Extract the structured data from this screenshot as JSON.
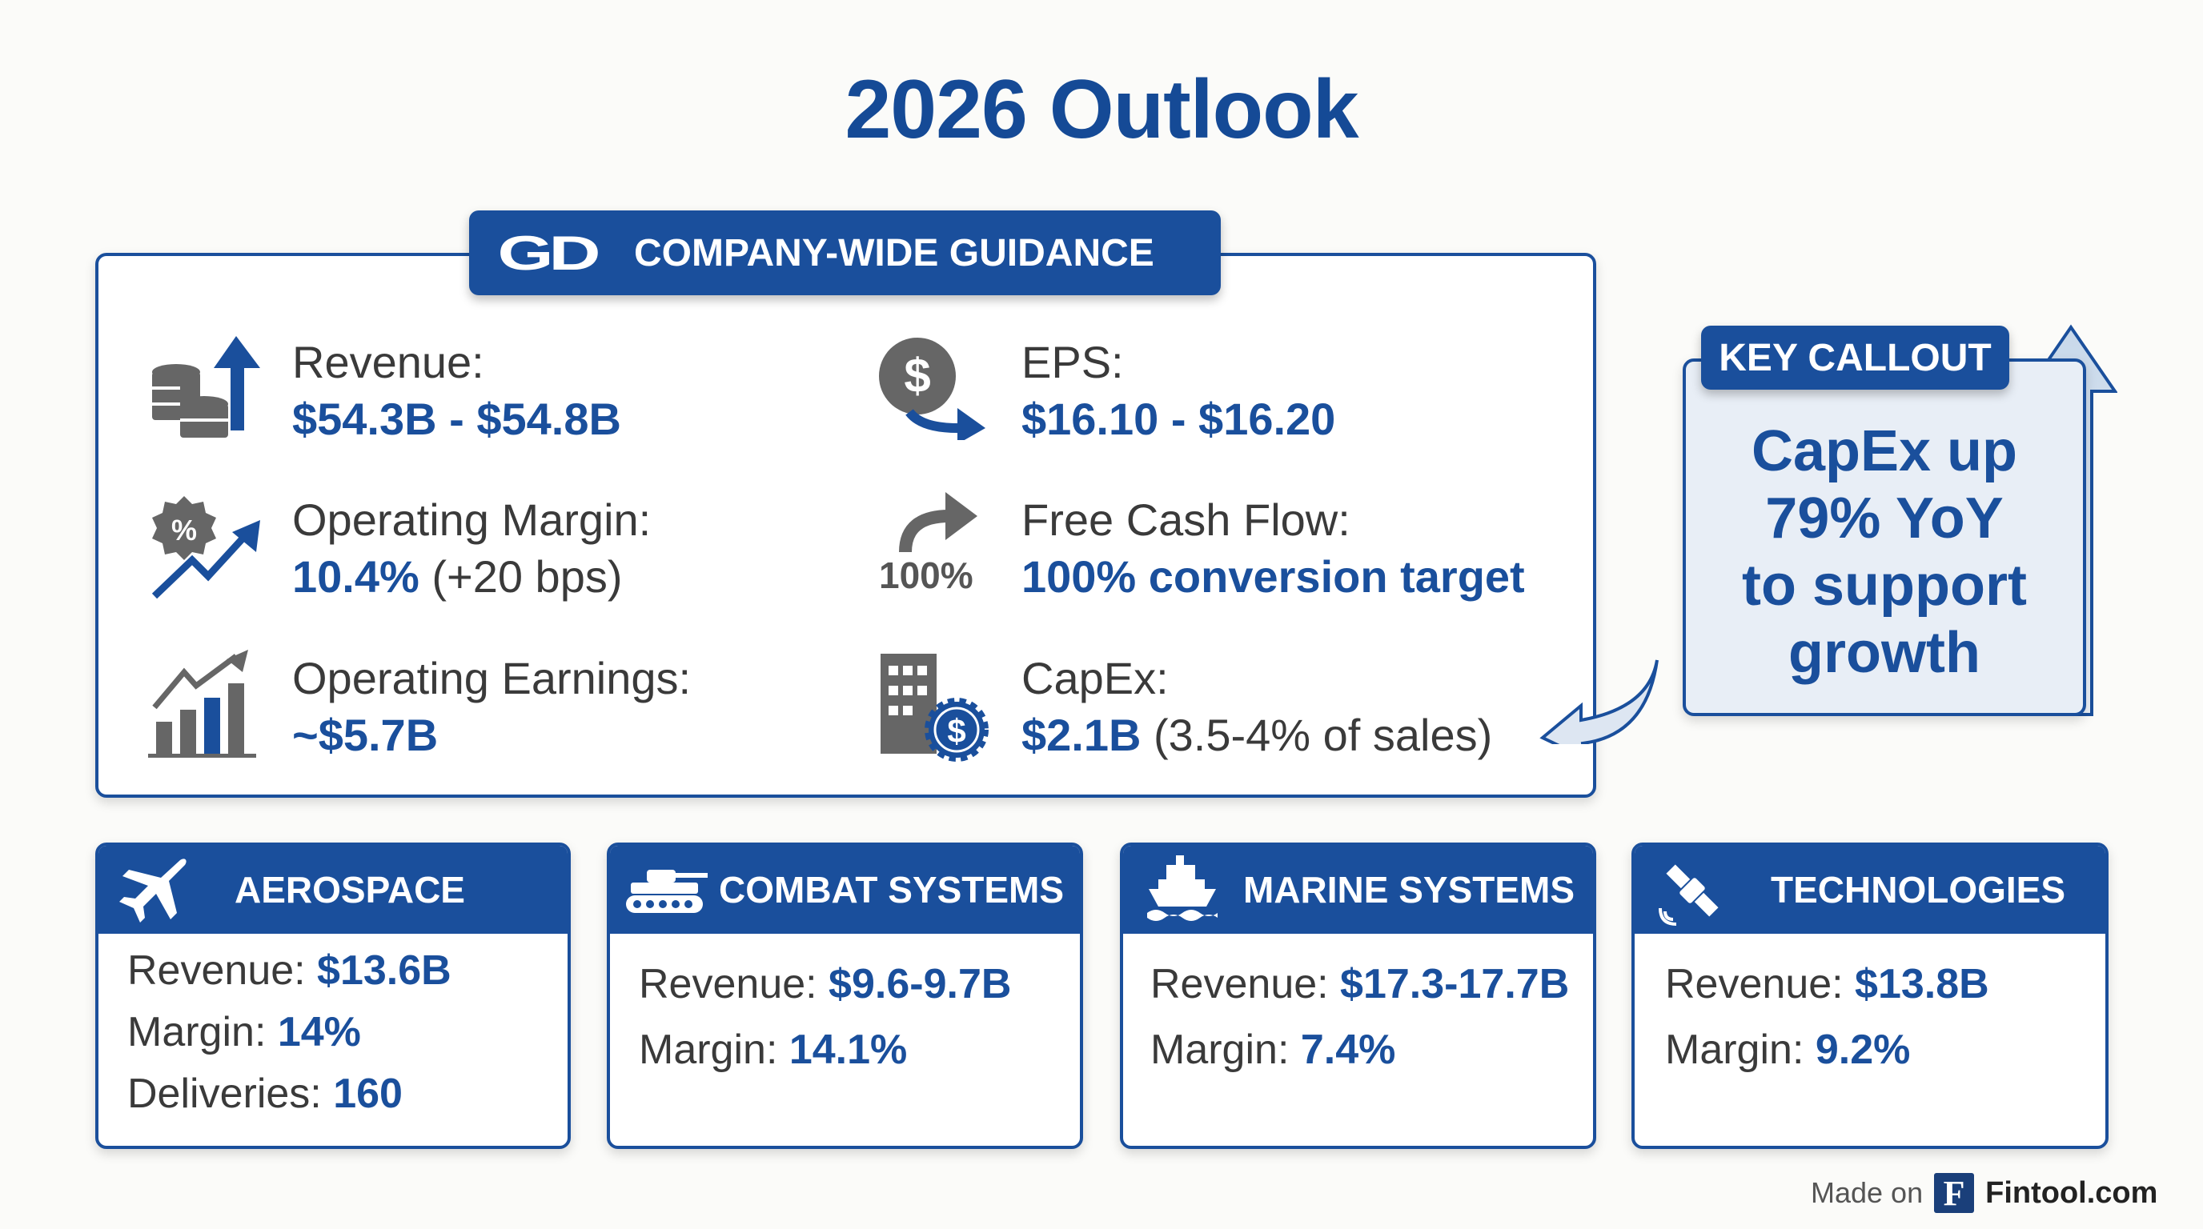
{
  "title": "2026 Outlook",
  "guidance": {
    "logo": "GD",
    "header": "COMPANY-WIDE GUIDANCE",
    "items": [
      {
        "icon": "coins-arrow-up-icon",
        "label": "Revenue:",
        "value": "$54.3B - $54.8B",
        "note": ""
      },
      {
        "icon": "dollar-arrow-icon",
        "label": "EPS:",
        "value": "$16.10 - $16.20",
        "note": ""
      },
      {
        "icon": "percent-badge-trend-icon",
        "label": "Operating Margin:",
        "value": "10.4%",
        "note": " (+20 bps)"
      },
      {
        "icon": "curved-arrow-100-icon",
        "icon_text": "100%",
        "label": "Free Cash Flow:",
        "value": "100% conversion target",
        "note": ""
      },
      {
        "icon": "bar-chart-trend-icon",
        "label": "Operating Earnings:",
        "value": "~$5.7B",
        "note": ""
      },
      {
        "icon": "building-dollar-gear-icon",
        "label": "CapEx:",
        "value": "$2.1B",
        "note": " (3.5-4% of sales)"
      }
    ]
  },
  "callout": {
    "header": "KEY CALLOUT",
    "lines": [
      "CapEx up",
      "79% YoY",
      "to support",
      "growth"
    ]
  },
  "segments": [
    {
      "icon": "airplane-icon",
      "name": "AEROSPACE",
      "rows": [
        {
          "label": "Revenue: ",
          "value": "$13.6B"
        },
        {
          "label": "Margin: ",
          "value": "14%"
        },
        {
          "label": "Deliveries: ",
          "value": "160"
        }
      ]
    },
    {
      "icon": "tank-icon",
      "name": "COMBAT SYSTEMS",
      "rows": [
        {
          "label": "Revenue: ",
          "value": "$9.6-9.7B"
        },
        {
          "label": "Margin: ",
          "value": "14.1%"
        }
      ]
    },
    {
      "icon": "ship-icon",
      "name": "MARINE SYSTEMS",
      "rows": [
        {
          "label": "Revenue: ",
          "value": "$17.3-17.7B"
        },
        {
          "label": "Margin: ",
          "value": "7.4%"
        }
      ]
    },
    {
      "icon": "satellite-icon",
      "name": "TECHNOLOGIES",
      "rows": [
        {
          "label": "Revenue: ",
          "value": "$13.8B"
        },
        {
          "label": "Margin: ",
          "value": "9.2%"
        }
      ]
    }
  ],
  "footer": {
    "made_on": "Made on",
    "logo_letter": "F",
    "brand": "Fintool.com"
  },
  "colors": {
    "primary": "#1a4f9c",
    "text": "#3a3a3a",
    "background": "#fbfbf9",
    "callout_bg": "#e6edf6"
  }
}
